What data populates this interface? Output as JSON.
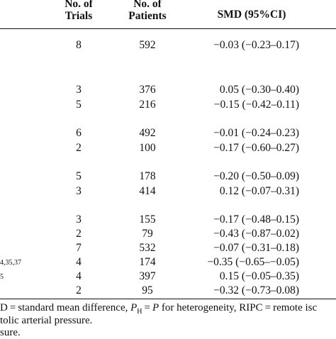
{
  "header": {
    "trials_line1": "No. of",
    "trials_line2": "Trials",
    "patients_line1": "No. of",
    "patients_line2": "Patients",
    "smd": "SMD (95%CI)"
  },
  "rows": [
    {
      "trials": "8",
      "patients": "592",
      "smd": "−0.03 (−0.23–0.17)"
    },
    {
      "trials": "3",
      "patients": "376",
      "smd": "0.05 (−0.30–0.40)"
    },
    {
      "trials": "5",
      "patients": "216",
      "smd": "−0.15 (−0.42–0.11)"
    },
    {
      "trials": "6",
      "patients": "492",
      "smd": "−0.01 (−0.24–0.23)"
    },
    {
      "trials": "2",
      "patients": "100",
      "smd": "−0.17 (−0.60–0.27)"
    },
    {
      "trials": "5",
      "patients": "178",
      "smd": "−0.20 (−0.50–0.09)"
    },
    {
      "trials": "3",
      "patients": "414",
      "smd": "0.12 (−0.07–0.31)"
    },
    {
      "trials": "3",
      "patients": "155",
      "smd": "−0.17 (−0.48–0.15)"
    },
    {
      "trials": "2",
      "patients": "79",
      "smd": "−0.43 (−0.87–0.02)"
    },
    {
      "trials": "7",
      "patients": "532",
      "smd": "−0.07 (−0.31–0.18)"
    },
    {
      "trials": "4",
      "patients": "174",
      "smd": "−0.35 (−0.65–−0.05)"
    },
    {
      "trials": "4",
      "patients": "397",
      "smd": "0.15 (−0.05–0.35)"
    },
    {
      "trials": "2",
      "patients": "95",
      "smd": "−0.32 (−0.73–0.08)"
    }
  ],
  "row_refs": {
    "r10": "4,35,37",
    "r11": "5"
  },
  "footnote": {
    "line1_a": "D = standard mean difference, ",
    "line1_ph": "P",
    "line1_ph_sub": "H",
    "line1_b": " = ",
    "line1_p": "P",
    "line1_c": " for heterogeneity, RIPC = remote isc",
    "line2": "tolic arterial pressure.",
    "line3": "sure."
  }
}
